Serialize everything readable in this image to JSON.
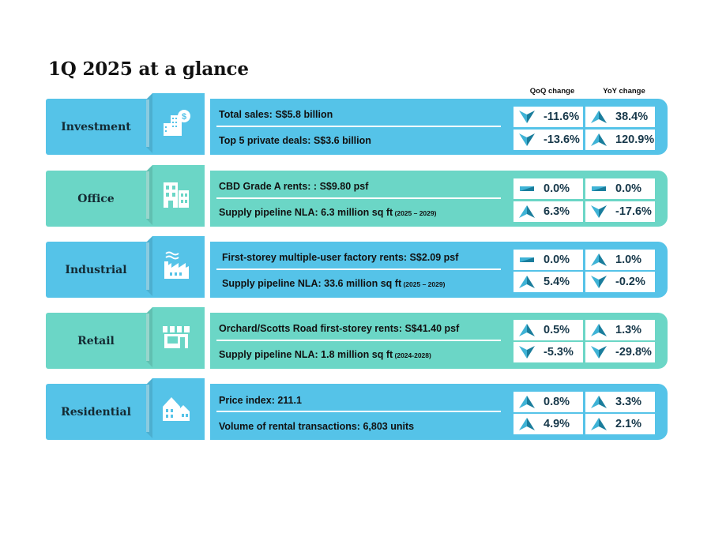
{
  "title": "1Q 2025 at a glance",
  "headers": {
    "qoq": "QoQ change",
    "yoy": "YoY change"
  },
  "colors": {
    "blue": "#55c3e8",
    "teal": "#6bd6c6",
    "arrow_up": "#1e84a3",
    "arrow_down": "#1e84a3",
    "flat": "#2a9bb8"
  },
  "sectors": [
    {
      "name": "Investment",
      "icon": "building-dollar-icon",
      "rows": [
        {
          "text": "Total sales: S$5.8 billion",
          "note": "",
          "qoq": {
            "dir": "down",
            "value": "-11.6%"
          },
          "yoy": {
            "dir": "up",
            "value": "38.4%"
          }
        },
        {
          "text": "Top 5 private deals: S$3.6 billion",
          "note": "",
          "qoq": {
            "dir": "down",
            "value": "-13.6%"
          },
          "yoy": {
            "dir": "up",
            "value": "120.9%"
          }
        }
      ]
    },
    {
      "name": "Office",
      "icon": "office-building-icon",
      "rows": [
        {
          "text": "CBD Grade A rents: : S$9.80 psf",
          "note": "",
          "qoq": {
            "dir": "flat",
            "value": "0.0%"
          },
          "yoy": {
            "dir": "flat",
            "value": "0.0%"
          }
        },
        {
          "text": "Supply pipeline NLA: 6.3 million sq ft",
          "note": "(2025 – 2029)",
          "qoq": {
            "dir": "up",
            "value": "6.3%"
          },
          "yoy": {
            "dir": "down",
            "value": "-17.6%"
          }
        }
      ]
    },
    {
      "name": "Industrial",
      "icon": "factory-icon",
      "rows": [
        {
          "text": "First-storey multiple-user factory rents: S$2.09 psf",
          "note": "",
          "qoq": {
            "dir": "flat",
            "value": "0.0%"
          },
          "yoy": {
            "dir": "up",
            "value": "1.0%"
          }
        },
        {
          "text": "Supply pipeline NLA: 33.6 million sq ft",
          "note": "(2025 – 2029)",
          "qoq": {
            "dir": "up",
            "value": "5.4%"
          },
          "yoy": {
            "dir": "down",
            "value": "-0.2%"
          }
        }
      ]
    },
    {
      "name": "Retail",
      "icon": "storefront-icon",
      "rows": [
        {
          "text": "Orchard/Scotts Road first-storey rents: S$41.40 psf",
          "note": "",
          "qoq": {
            "dir": "up",
            "value": "0.5%"
          },
          "yoy": {
            "dir": "up",
            "value": "1.3%"
          }
        },
        {
          "text": "Supply pipeline NLA: 1.8 million sq ft",
          "note": "(2024-2028)",
          "qoq": {
            "dir": "down",
            "value": "-5.3%"
          },
          "yoy": {
            "dir": "down",
            "value": "-29.8%"
          }
        }
      ]
    },
    {
      "name": "Residential",
      "icon": "houses-icon",
      "rows": [
        {
          "text": "Price index: 211.1",
          "note": "",
          "qoq": {
            "dir": "up",
            "value": "0.8%"
          },
          "yoy": {
            "dir": "up",
            "value": "3.3%"
          }
        },
        {
          "text": "Volume of rental transactions: 6,803 units",
          "note": "",
          "qoq": {
            "dir": "up",
            "value": "4.9%"
          },
          "yoy": {
            "dir": "up",
            "value": "2.1%"
          }
        }
      ]
    }
  ]
}
